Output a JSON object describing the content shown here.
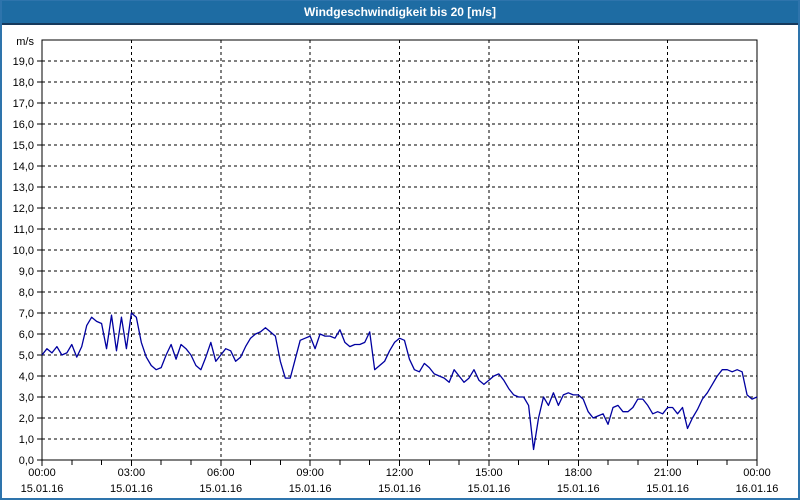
{
  "window": {
    "title": "Windgeschwindigkeit bis 20 [m/s]"
  },
  "colors": {
    "titlebar_bg": "#1e6ca3",
    "titlebar_text": "#ffffff",
    "frame": "#2e74ac",
    "plot_background": "#ffffff",
    "plot_border": "#000000",
    "grid": "#000000",
    "axis_text": "#000000",
    "line": "#0000a0"
  },
  "chart_data": {
    "type": "line",
    "title": "Windgeschwindigkeit bis 20 [m/s]",
    "unit_label": "m/s",
    "ylim": [
      0,
      20
    ],
    "ytick_step": 1,
    "ytick_labels": [
      "0,0",
      "1,0",
      "2,0",
      "3,0",
      "4,0",
      "5,0",
      "6,0",
      "7,0",
      "8,0",
      "9,0",
      "10,0",
      "11,0",
      "12,0",
      "13,0",
      "14,0",
      "15,0",
      "16,0",
      "17,0",
      "18,0",
      "19,0"
    ],
    "x_hours_range": [
      0,
      24
    ],
    "minor_xtick_every_hours": 1,
    "grid": "dashed",
    "legend_position": "none",
    "xticks": [
      {
        "hour": 0,
        "time": "00:00",
        "date": "15.01.16"
      },
      {
        "hour": 3,
        "time": "03:00",
        "date": "15.01.16"
      },
      {
        "hour": 6,
        "time": "06:00",
        "date": "15.01.16"
      },
      {
        "hour": 9,
        "time": "09:00",
        "date": "15.01.16"
      },
      {
        "hour": 12,
        "time": "12:00",
        "date": "15.01.16"
      },
      {
        "hour": 15,
        "time": "15:00",
        "date": "15.01.16"
      },
      {
        "hour": 18,
        "time": "18:00",
        "date": "15.01.16"
      },
      {
        "hour": 21,
        "time": "21:00",
        "date": "15.01.16"
      },
      {
        "hour": 24,
        "time": "00:00",
        "date": "16.01.16"
      }
    ],
    "series": [
      {
        "name": "Windgeschwindigkeit",
        "color": "#0000a0",
        "interval_minutes": 10,
        "start_time": "15.01.16 00:00",
        "values": [
          5.0,
          5.3,
          5.1,
          5.4,
          5.0,
          5.1,
          5.5,
          4.9,
          5.4,
          6.4,
          6.8,
          6.6,
          6.5,
          5.3,
          6.9,
          5.2,
          6.8,
          5.3,
          7.0,
          6.8,
          5.6,
          4.9,
          4.5,
          4.3,
          4.4,
          5.0,
          5.5,
          4.8,
          5.5,
          5.3,
          5.0,
          4.5,
          4.3,
          4.9,
          5.6,
          4.7,
          5.0,
          5.3,
          5.2,
          4.7,
          4.9,
          5.4,
          5.8,
          6.0,
          6.1,
          6.3,
          6.1,
          5.9,
          4.7,
          3.9,
          3.9,
          4.8,
          5.7,
          5.8,
          5.9,
          5.3,
          6.0,
          5.9,
          5.9,
          5.8,
          6.2,
          5.6,
          5.4,
          5.5,
          5.5,
          5.6,
          6.1,
          4.3,
          4.5,
          4.7,
          5.2,
          5.6,
          5.8,
          5.7,
          4.8,
          4.3,
          4.2,
          4.6,
          4.4,
          4.1,
          4.0,
          3.9,
          3.7,
          4.3,
          4.0,
          3.7,
          3.9,
          4.3,
          3.8,
          3.6,
          3.8,
          4.0,
          4.1,
          3.8,
          3.4,
          3.1,
          3.0,
          3.0,
          2.6,
          0.5,
          2.0,
          3.0,
          2.6,
          3.2,
          2.6,
          3.1,
          3.2,
          3.1,
          3.1,
          2.9,
          2.3,
          2.0,
          2.1,
          2.2,
          1.7,
          2.5,
          2.6,
          2.3,
          2.3,
          2.5,
          2.9,
          2.9,
          2.6,
          2.2,
          2.3,
          2.2,
          2.5,
          2.5,
          2.2,
          2.5,
          1.5,
          2.0,
          2.4,
          2.9,
          3.2,
          3.6,
          4.0,
          4.3,
          4.3,
          4.2,
          4.3,
          4.2,
          3.1,
          2.9,
          3.0
        ]
      }
    ]
  }
}
